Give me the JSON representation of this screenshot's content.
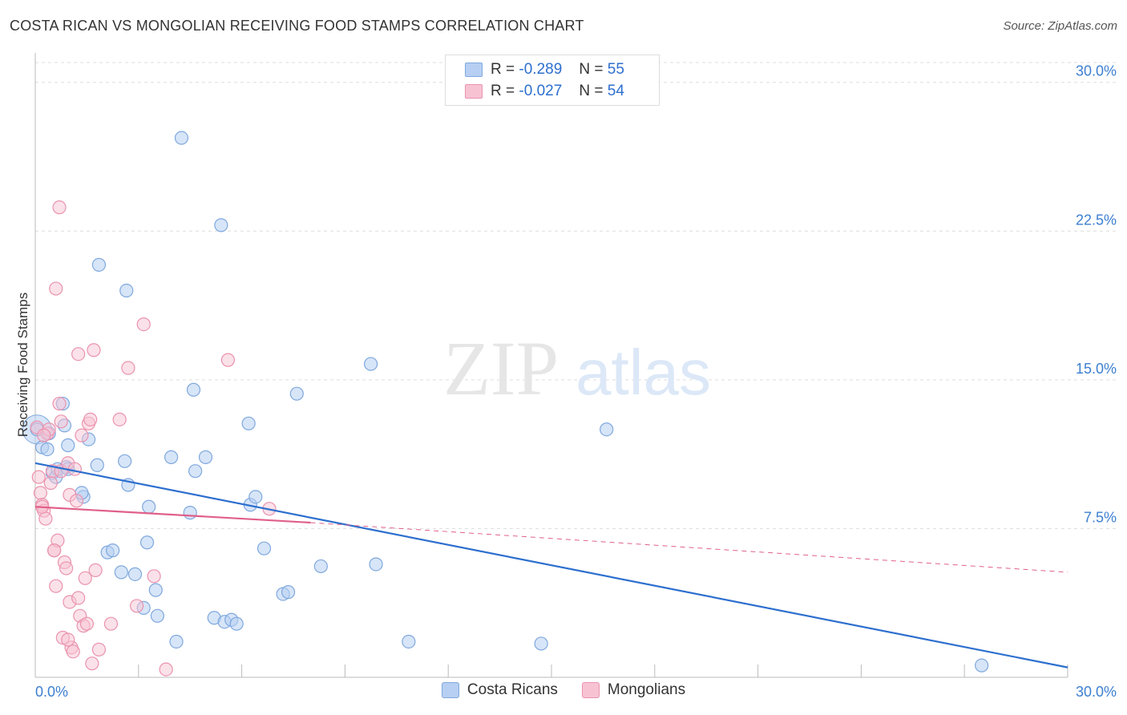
{
  "title": "COSTA RICAN VS MONGOLIAN RECEIVING FOOD STAMPS CORRELATION CHART",
  "source": "Source: ZipAtlas.com",
  "watermark": {
    "zip": "ZIP",
    "atlas": "atlas"
  },
  "legend_stats": [
    {
      "r_label": "R =",
      "r_value": "-0.289",
      "n_label": "N =",
      "n_value": "55"
    },
    {
      "r_label": "R =",
      "r_value": "-0.027",
      "n_label": "N =",
      "n_value": "54"
    }
  ],
  "colors": {
    "blue_fill": "#b6cff2",
    "blue_stroke": "#7fa8de",
    "blue_line": "#2d6fce",
    "pink_fill": "#f7c3d3",
    "pink_stroke": "#ea93ae",
    "pink_line": "#e0608a",
    "grid": "#dddddd",
    "axis_text": "#3d7fd1"
  },
  "chart_data": {
    "type": "scatter",
    "title": "COSTA RICAN VS MONGOLIAN RECEIVING FOOD STAMPS CORRELATION CHART",
    "xlabel": "",
    "ylabel": "Receiving Food Stamps",
    "xlim": [
      0,
      30
    ],
    "ylim": [
      0,
      31
    ],
    "x_tick_labels": [
      "0.0%",
      "30.0%"
    ],
    "y_ticks": [
      7.5,
      15.0,
      22.5,
      30.0
    ],
    "y_tick_labels": [
      "7.5%",
      "15.0%",
      "22.5%",
      "30.0%"
    ],
    "grid": true,
    "legend": [
      "Costa Ricans",
      "Mongolians"
    ],
    "series": [
      {
        "name": "Costa Ricans",
        "r": -0.289,
        "n": 55,
        "trend": {
          "x": [
            0,
            30
          ],
          "y": [
            10.8,
            0.5
          ],
          "dashed_extension": false
        },
        "points": [
          [
            0.05,
            12.5
          ],
          [
            0.2,
            11.6
          ],
          [
            0.35,
            11.5
          ],
          [
            0.5,
            10.3
          ],
          [
            0.6,
            10.1
          ],
          [
            0.65,
            10.5
          ],
          [
            0.4,
            12.3
          ],
          [
            0.9,
            10.6
          ],
          [
            0.95,
            11.7
          ],
          [
            0.85,
            12.7
          ],
          [
            0.95,
            10.5
          ],
          [
            0.8,
            13.8
          ],
          [
            1.4,
            9.1
          ],
          [
            1.35,
            9.3
          ],
          [
            1.55,
            12.0
          ],
          [
            1.8,
            10.7
          ],
          [
            1.85,
            20.8
          ],
          [
            2.1,
            6.3
          ],
          [
            2.25,
            6.4
          ],
          [
            2.6,
            10.9
          ],
          [
            2.7,
            9.7
          ],
          [
            2.5,
            5.3
          ],
          [
            2.9,
            5.2
          ],
          [
            3.15,
            3.5
          ],
          [
            3.25,
            6.8
          ],
          [
            3.5,
            4.4
          ],
          [
            3.55,
            3.1
          ],
          [
            3.3,
            8.6
          ],
          [
            3.95,
            11.1
          ],
          [
            4.1,
            1.8
          ],
          [
            4.25,
            27.2
          ],
          [
            4.5,
            8.3
          ],
          [
            4.6,
            14.5
          ],
          [
            4.65,
            10.4
          ],
          [
            4.95,
            11.1
          ],
          [
            5.2,
            3.0
          ],
          [
            5.5,
            2.8
          ],
          [
            5.7,
            2.9
          ],
          [
            5.85,
            2.7
          ],
          [
            5.4,
            22.8
          ],
          [
            6.2,
            12.8
          ],
          [
            6.25,
            8.7
          ],
          [
            6.4,
            9.1
          ],
          [
            6.65,
            6.5
          ],
          [
            7.2,
            4.2
          ],
          [
            7.35,
            4.3
          ],
          [
            7.6,
            14.3
          ],
          [
            8.3,
            5.6
          ],
          [
            9.9,
            5.7
          ],
          [
            9.75,
            15.8
          ],
          [
            10.85,
            1.8
          ],
          [
            2.65,
            19.5
          ],
          [
            14.7,
            1.7
          ],
          [
            16.6,
            12.5
          ],
          [
            27.5,
            0.6
          ]
        ]
      },
      {
        "name": "Mongolians",
        "r": -0.027,
        "n": 54,
        "trend": {
          "x": [
            0,
            8
          ],
          "y": [
            8.6,
            7.8
          ],
          "dashed_extension": true,
          "extension_to": [
            30,
            5.3
          ]
        },
        "points": [
          [
            0.05,
            12.6
          ],
          [
            0.1,
            10.1
          ],
          [
            0.15,
            9.3
          ],
          [
            0.2,
            8.7
          ],
          [
            0.25,
            8.4
          ],
          [
            0.3,
            8.0
          ],
          [
            0.35,
            12.3
          ],
          [
            0.4,
            12.5
          ],
          [
            0.45,
            9.8
          ],
          [
            0.5,
            10.4
          ],
          [
            0.55,
            6.4
          ],
          [
            0.6,
            4.6
          ],
          [
            0.65,
            6.9
          ],
          [
            0.7,
            13.8
          ],
          [
            0.75,
            12.9
          ],
          [
            0.75,
            10.4
          ],
          [
            0.8,
            2.0
          ],
          [
            0.85,
            5.8
          ],
          [
            0.9,
            5.5
          ],
          [
            0.95,
            10.8
          ],
          [
            1.0,
            9.2
          ],
          [
            1.0,
            3.8
          ],
          [
            1.05,
            1.5
          ],
          [
            1.1,
            1.3
          ],
          [
            1.15,
            10.5
          ],
          [
            1.2,
            8.9
          ],
          [
            1.25,
            4.0
          ],
          [
            1.3,
            3.1
          ],
          [
            1.35,
            12.2
          ],
          [
            1.4,
            2.6
          ],
          [
            1.5,
            2.7
          ],
          [
            1.45,
            5.0
          ],
          [
            1.55,
            12.8
          ],
          [
            1.6,
            13.0
          ],
          [
            1.65,
            0.7
          ],
          [
            1.7,
            16.5
          ],
          [
            1.75,
            5.4
          ],
          [
            1.85,
            1.4
          ],
          [
            2.2,
            2.7
          ],
          [
            2.45,
            13.0
          ],
          [
            2.7,
            15.6
          ],
          [
            2.95,
            3.6
          ],
          [
            3.15,
            17.8
          ],
          [
            3.45,
            5.1
          ],
          [
            3.8,
            0.4
          ],
          [
            5.6,
            16.0
          ],
          [
            6.8,
            8.5
          ],
          [
            0.25,
            12.2
          ],
          [
            0.55,
            6.4
          ],
          [
            0.95,
            1.9
          ],
          [
            0.6,
            19.6
          ],
          [
            0.7,
            23.7
          ],
          [
            1.25,
            16.3
          ],
          [
            0.2,
            8.6
          ]
        ]
      }
    ]
  }
}
